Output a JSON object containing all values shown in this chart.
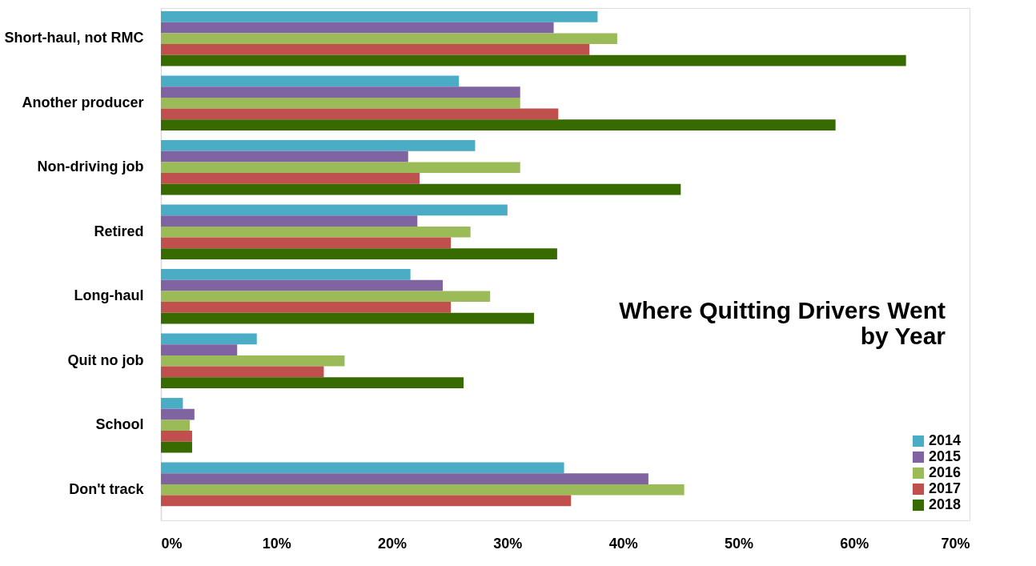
{
  "chart_data": {
    "type": "bar",
    "orientation": "horizontal",
    "title": [
      "Where Quitting Drivers Went",
      "by Year"
    ],
    "categories": [
      "Short-haul, not RMC",
      "Another producer",
      "Non-driving job",
      "Retired",
      "Long-haul",
      "Quit no job",
      "School",
      "Don't track"
    ],
    "series": [
      {
        "name": "2014",
        "color": "#4bacc6",
        "values": [
          37.8,
          25.8,
          27.2,
          30.0,
          21.6,
          8.3,
          1.9,
          34.9
        ]
      },
      {
        "name": "2015",
        "color": "#8064a2",
        "values": [
          34.0,
          31.1,
          21.4,
          22.2,
          24.4,
          6.6,
          2.9,
          42.2
        ]
      },
      {
        "name": "2016",
        "color": "#9bbb59",
        "values": [
          39.5,
          31.1,
          31.1,
          26.8,
          28.5,
          15.9,
          2.5,
          45.3
        ]
      },
      {
        "name": "2017",
        "color": "#c0504d",
        "values": [
          37.1,
          34.4,
          22.4,
          25.1,
          25.1,
          14.1,
          2.7,
          35.5
        ]
      },
      {
        "name": "2018",
        "color": "#376b00",
        "values": [
          64.5,
          58.4,
          45.0,
          34.3,
          32.3,
          26.2,
          2.7,
          null
        ]
      }
    ],
    "xlim": [
      0,
      70
    ],
    "xticks": [
      {
        "value": 0,
        "label": "0%"
      },
      {
        "value": 10,
        "label": "10%"
      },
      {
        "value": 20,
        "label": "20%"
      },
      {
        "value": 30,
        "label": "30%"
      },
      {
        "value": 40,
        "label": "40%"
      },
      {
        "value": 50,
        "label": "50%"
      },
      {
        "value": 60,
        "label": "60%"
      },
      {
        "value": 70,
        "label": "70%"
      }
    ],
    "legend": "bottom right",
    "grid": false
  }
}
